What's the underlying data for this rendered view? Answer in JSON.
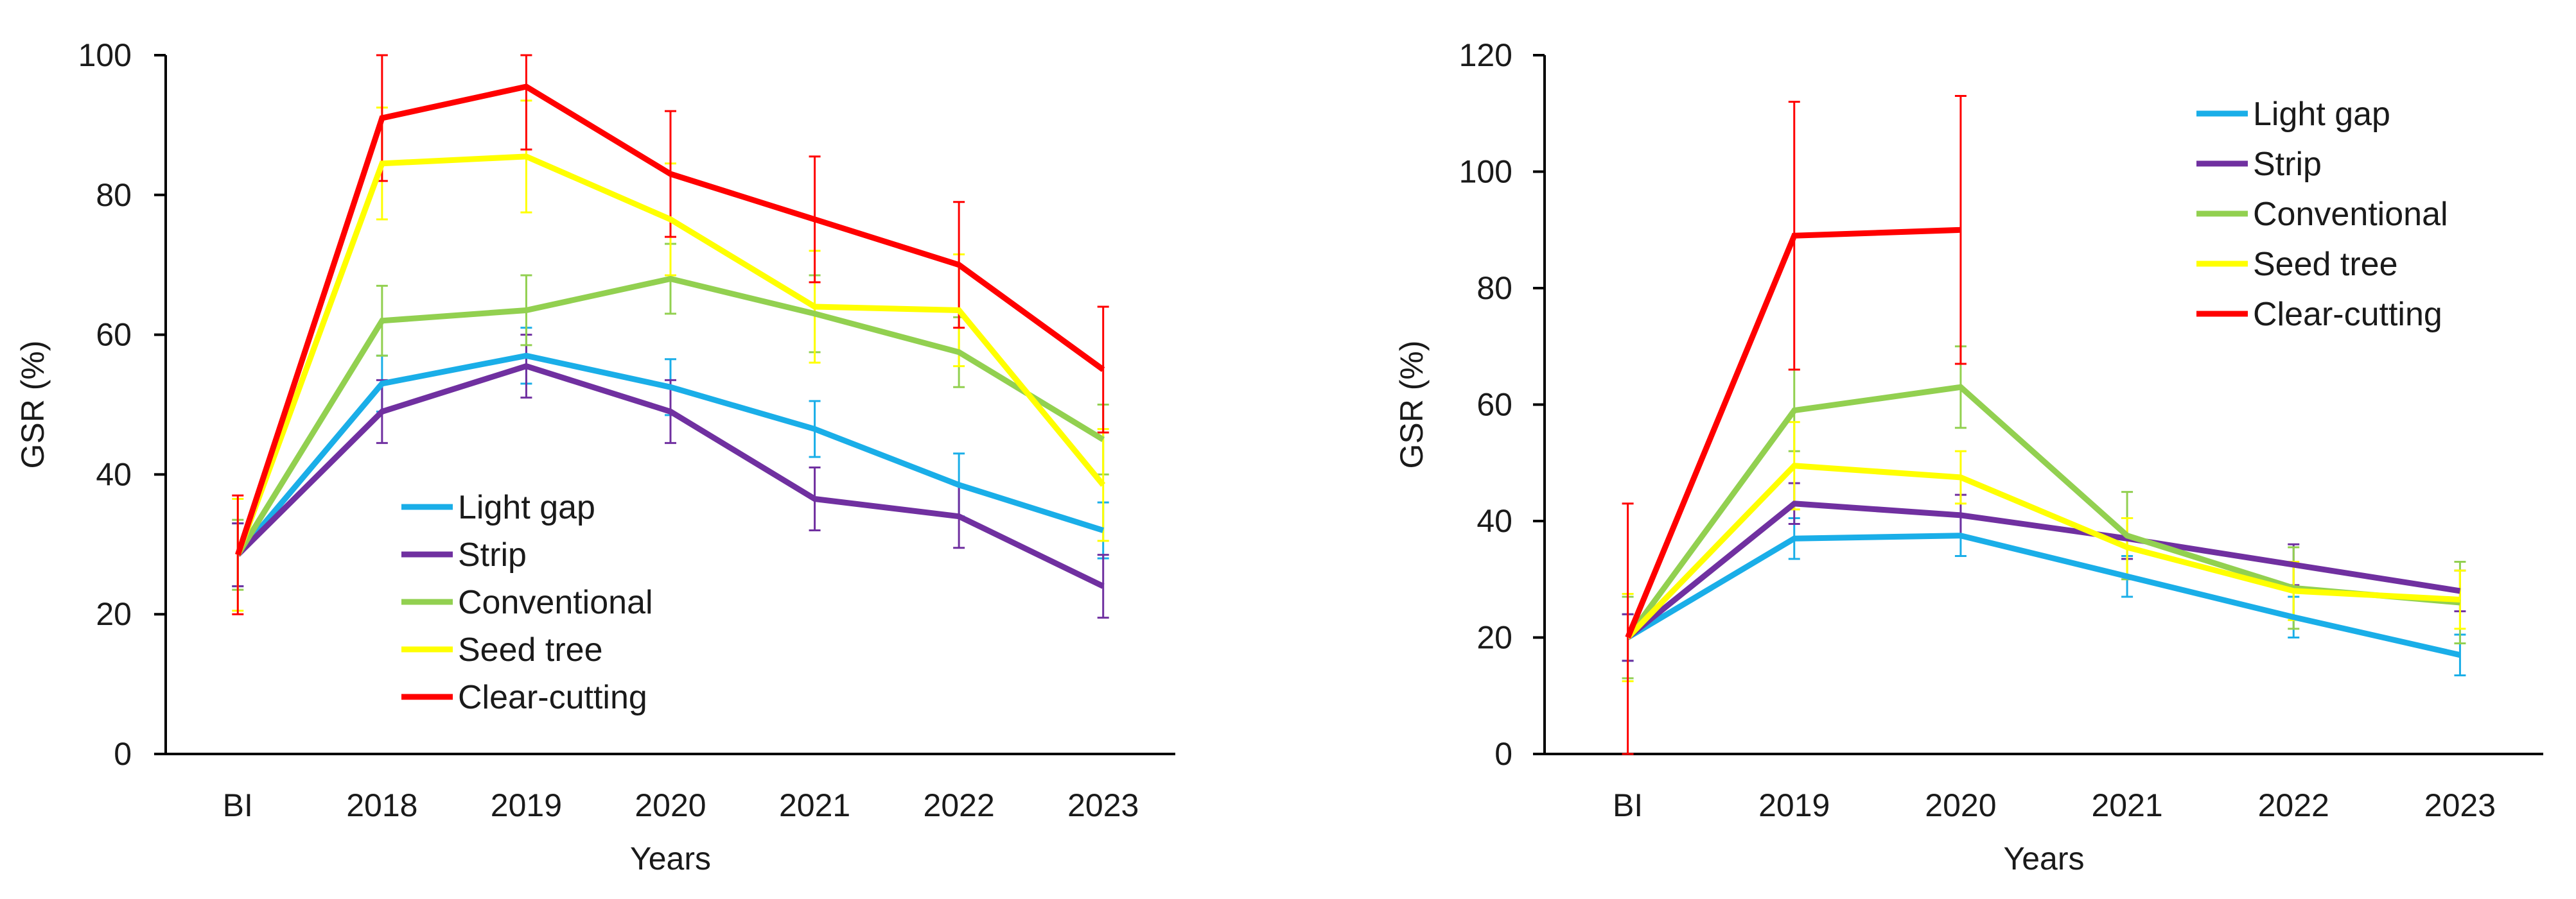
{
  "chart_data": [
    {
      "type": "line",
      "xlabel": "Years",
      "ylabel": "GSR (%)",
      "ylim": [
        0,
        100
      ],
      "yticks": [
        0,
        20,
        40,
        60,
        80,
        100
      ],
      "categories": [
        "BI",
        "2018",
        "2019",
        "2020",
        "2021",
        "2022",
        "2023"
      ],
      "legend_position": "bottom-left",
      "series": [
        {
          "name": "Light gap",
          "color": "#1aaee8",
          "values": [
            28.5,
            53,
            57,
            52.5,
            46.5,
            38.5,
            32
          ],
          "errors": [
            4.5,
            4,
            4,
            4,
            4,
            4.5,
            4
          ]
        },
        {
          "name": "Strip",
          "color": "#7030a0",
          "values": [
            28.5,
            49,
            55.5,
            49,
            36.5,
            34,
            24
          ],
          "errors": [
            4.5,
            4.5,
            4.5,
            4.5,
            4.5,
            4.5,
            4.5
          ]
        },
        {
          "name": "Conventional",
          "color": "#92d050",
          "values": [
            28.5,
            62,
            63.5,
            68,
            63,
            57.5,
            45
          ],
          "errors": [
            5,
            5,
            5,
            5,
            5.5,
            5,
            5
          ]
        },
        {
          "name": "Seed tree",
          "color": "#ffff00",
          "values": [
            28.5,
            84.5,
            85.5,
            76.5,
            64,
            63.5,
            38.5
          ],
          "errors": [
            8,
            8,
            8,
            8,
            8,
            8,
            8
          ]
        },
        {
          "name": "Clear-cutting",
          "color": "#ff0000",
          "values": [
            28.5,
            91,
            95.5,
            83,
            76.5,
            70,
            55
          ],
          "errors": [
            8.5,
            9,
            9,
            9,
            9,
            9,
            9
          ]
        }
      ]
    },
    {
      "type": "line",
      "xlabel": "Years",
      "ylabel": "GSR (%)",
      "ylim": [
        0,
        120
      ],
      "yticks": [
        0,
        20,
        40,
        60,
        80,
        100,
        120
      ],
      "categories": [
        "BI",
        "2019",
        "2020",
        "2021",
        "2022",
        "2023"
      ],
      "legend_position": "top-right",
      "series": [
        {
          "name": "Light gap",
          "color": "#1aaee8",
          "values": [
            20,
            37,
            37.5,
            30.5,
            23.5,
            17
          ],
          "errors": [
            4,
            3.5,
            3.5,
            3.5,
            3.5,
            3.5
          ]
        },
        {
          "name": "Strip",
          "color": "#7030a0",
          "values": [
            20,
            43,
            41,
            37,
            32.5,
            28
          ],
          "errors": [
            4,
            3.5,
            3.5,
            3.5,
            3.5,
            3.5
          ]
        },
        {
          "name": "Conventional",
          "color": "#92d050",
          "values": [
            20,
            59,
            63,
            37.5,
            28.5,
            26
          ],
          "errors": [
            7,
            7,
            7,
            7.5,
            7,
            7
          ]
        },
        {
          "name": "Seed tree",
          "color": "#ffff00",
          "values": [
            20,
            49.5,
            47.5,
            35.5,
            28,
            26.5
          ],
          "errors": [
            7.5,
            7.5,
            4.5,
            5,
            5,
            5
          ]
        },
        {
          "name": "Clear-cutting",
          "color": "#ff0000",
          "values": [
            20,
            89,
            90,
            null,
            null,
            null
          ],
          "errors": [
            23,
            23,
            23,
            null,
            null,
            null
          ]
        }
      ]
    }
  ]
}
